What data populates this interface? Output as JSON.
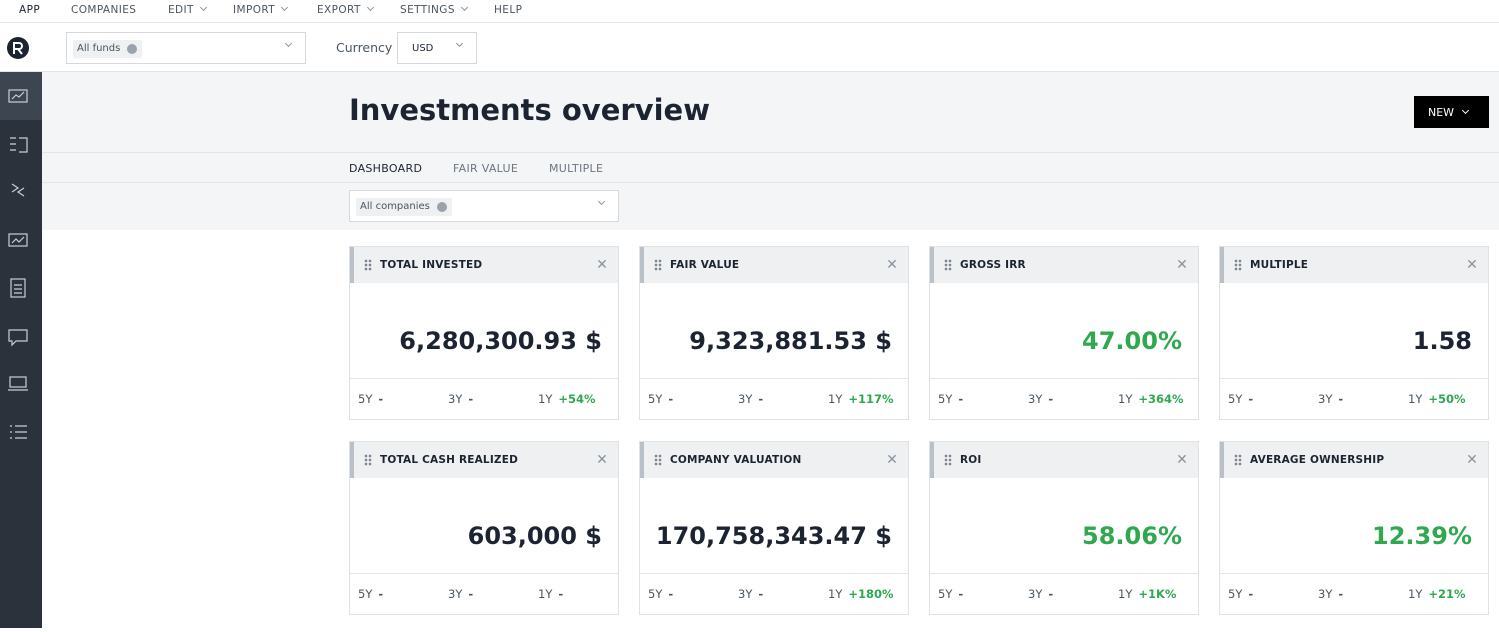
{
  "menu": [
    "APP",
    "COMPANIES",
    "EDIT",
    "IMPORT",
    "EXPORT",
    "SETTINGS",
    "HELP"
  ],
  "toolbar": {
    "fund_filter": "All funds",
    "currency_label": "Currency",
    "currency": "USD"
  },
  "page": {
    "title": "Investments overview",
    "new_button": "NEW",
    "tabs": [
      "DASHBOARD",
      "FAIR VALUE",
      "MULTIPLE"
    ],
    "company_filter": "All companies"
  },
  "cards": [
    {
      "title": "TOTAL INVESTED",
      "value": "6,280,300.93 $",
      "value_color": "#1c2331",
      "periods": [
        {
          "label": "5Y",
          "change": "-"
        },
        {
          "label": "3Y",
          "change": "-"
        },
        {
          "label": "1Y",
          "change": "+54%"
        }
      ]
    },
    {
      "title": "FAIR VALUE",
      "value": "9,323,881.53 $",
      "value_color": "#1c2331",
      "periods": [
        {
          "label": "5Y",
          "change": "-"
        },
        {
          "label": "3Y",
          "change": "-"
        },
        {
          "label": "1Y",
          "change": "+117%"
        }
      ]
    },
    {
      "title": "GROSS IRR",
      "value": "47.00%",
      "value_color": "#2fa84f",
      "periods": [
        {
          "label": "5Y",
          "change": "-"
        },
        {
          "label": "3Y",
          "change": "-"
        },
        {
          "label": "1Y",
          "change": "+364%"
        }
      ]
    },
    {
      "title": "MULTIPLE",
      "value": "1.58",
      "value_color": "#1c2331",
      "periods": [
        {
          "label": "5Y",
          "change": "-"
        },
        {
          "label": "3Y",
          "change": "-"
        },
        {
          "label": "1Y",
          "change": "+50%"
        }
      ]
    },
    {
      "title": "TOTAL CASH REALIZED",
      "value": "603,000 $",
      "value_color": "#1c2331",
      "periods": [
        {
          "label": "5Y",
          "change": "-"
        },
        {
          "label": "3Y",
          "change": "-"
        },
        {
          "label": "1Y",
          "change": "-"
        }
      ]
    },
    {
      "title": "COMPANY VALUATION",
      "value": "170,758,343.47 $",
      "value_color": "#1c2331",
      "periods": [
        {
          "label": "5Y",
          "change": "-"
        },
        {
          "label": "3Y",
          "change": "-"
        },
        {
          "label": "1Y",
          "change": "+180%"
        }
      ]
    },
    {
      "title": "ROI",
      "value": "58.06%",
      "value_color": "#2fa84f",
      "periods": [
        {
          "label": "5Y",
          "change": "-"
        },
        {
          "label": "3Y",
          "change": "-"
        },
        {
          "label": "1Y",
          "change": "+1K%"
        }
      ]
    },
    {
      "title": "AVERAGE OWNERSHIP",
      "value": "12.39%",
      "value_color": "#2fa84f",
      "periods": [
        {
          "label": "5Y",
          "change": "-"
        },
        {
          "label": "3Y",
          "change": "-"
        },
        {
          "label": "1Y",
          "change": "+21%"
        }
      ]
    }
  ]
}
